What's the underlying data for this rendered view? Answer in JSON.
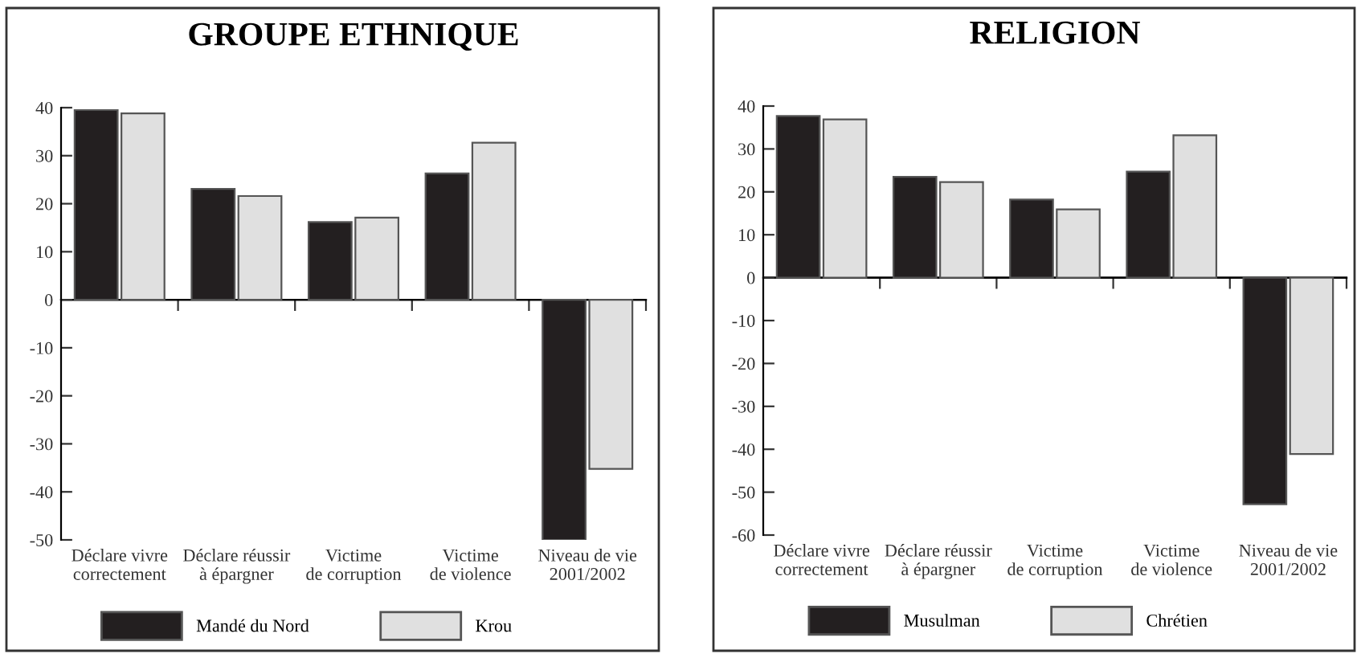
{
  "chart_data": [
    {
      "type": "bar",
      "title": "GROUPE ETHNIQUE",
      "categories": [
        "Déclare vivre\ncorrectement",
        "Déclare réussir\nà épargner",
        "Victime\nde corruption",
        "Victime\nde violence",
        "Niveau de vie\n2001/2002"
      ],
      "series": [
        {
          "name": "Mandé du Nord",
          "color": "#231f20",
          "values": [
            39.5,
            23.1,
            16.2,
            26.3,
            -50
          ]
        },
        {
          "name": "Krou",
          "color": "#e0e0e0",
          "values": [
            38.8,
            21.6,
            17.1,
            32.7,
            -35.2
          ]
        }
      ],
      "ylim": [
        -50,
        40
      ],
      "yticks": [
        -50,
        -40,
        -30,
        -20,
        -10,
        0,
        10,
        20,
        30,
        40
      ],
      "legend": "bottom"
    },
    {
      "type": "bar",
      "title": "RELIGION",
      "categories": [
        "Déclare vivre\ncorrectement",
        "Déclare réussir\nà épargner",
        "Victime\nde corruption",
        "Victime\nde violence",
        "Niveau de vie\n2001/2002"
      ],
      "series": [
        {
          "name": "Musulman",
          "color": "#231f20",
          "values": [
            37.7,
            23.5,
            18.2,
            24.7,
            -52.8
          ]
        },
        {
          "name": "Chrétien",
          "color": "#e0e0e0",
          "values": [
            36.9,
            22.3,
            15.9,
            33.2,
            -41.1
          ]
        }
      ],
      "ylim": [
        -60,
        40
      ],
      "yticks": [
        -60,
        -50,
        -40,
        -30,
        -20,
        -10,
        0,
        10,
        20,
        30,
        40
      ],
      "legend": "bottom"
    }
  ]
}
